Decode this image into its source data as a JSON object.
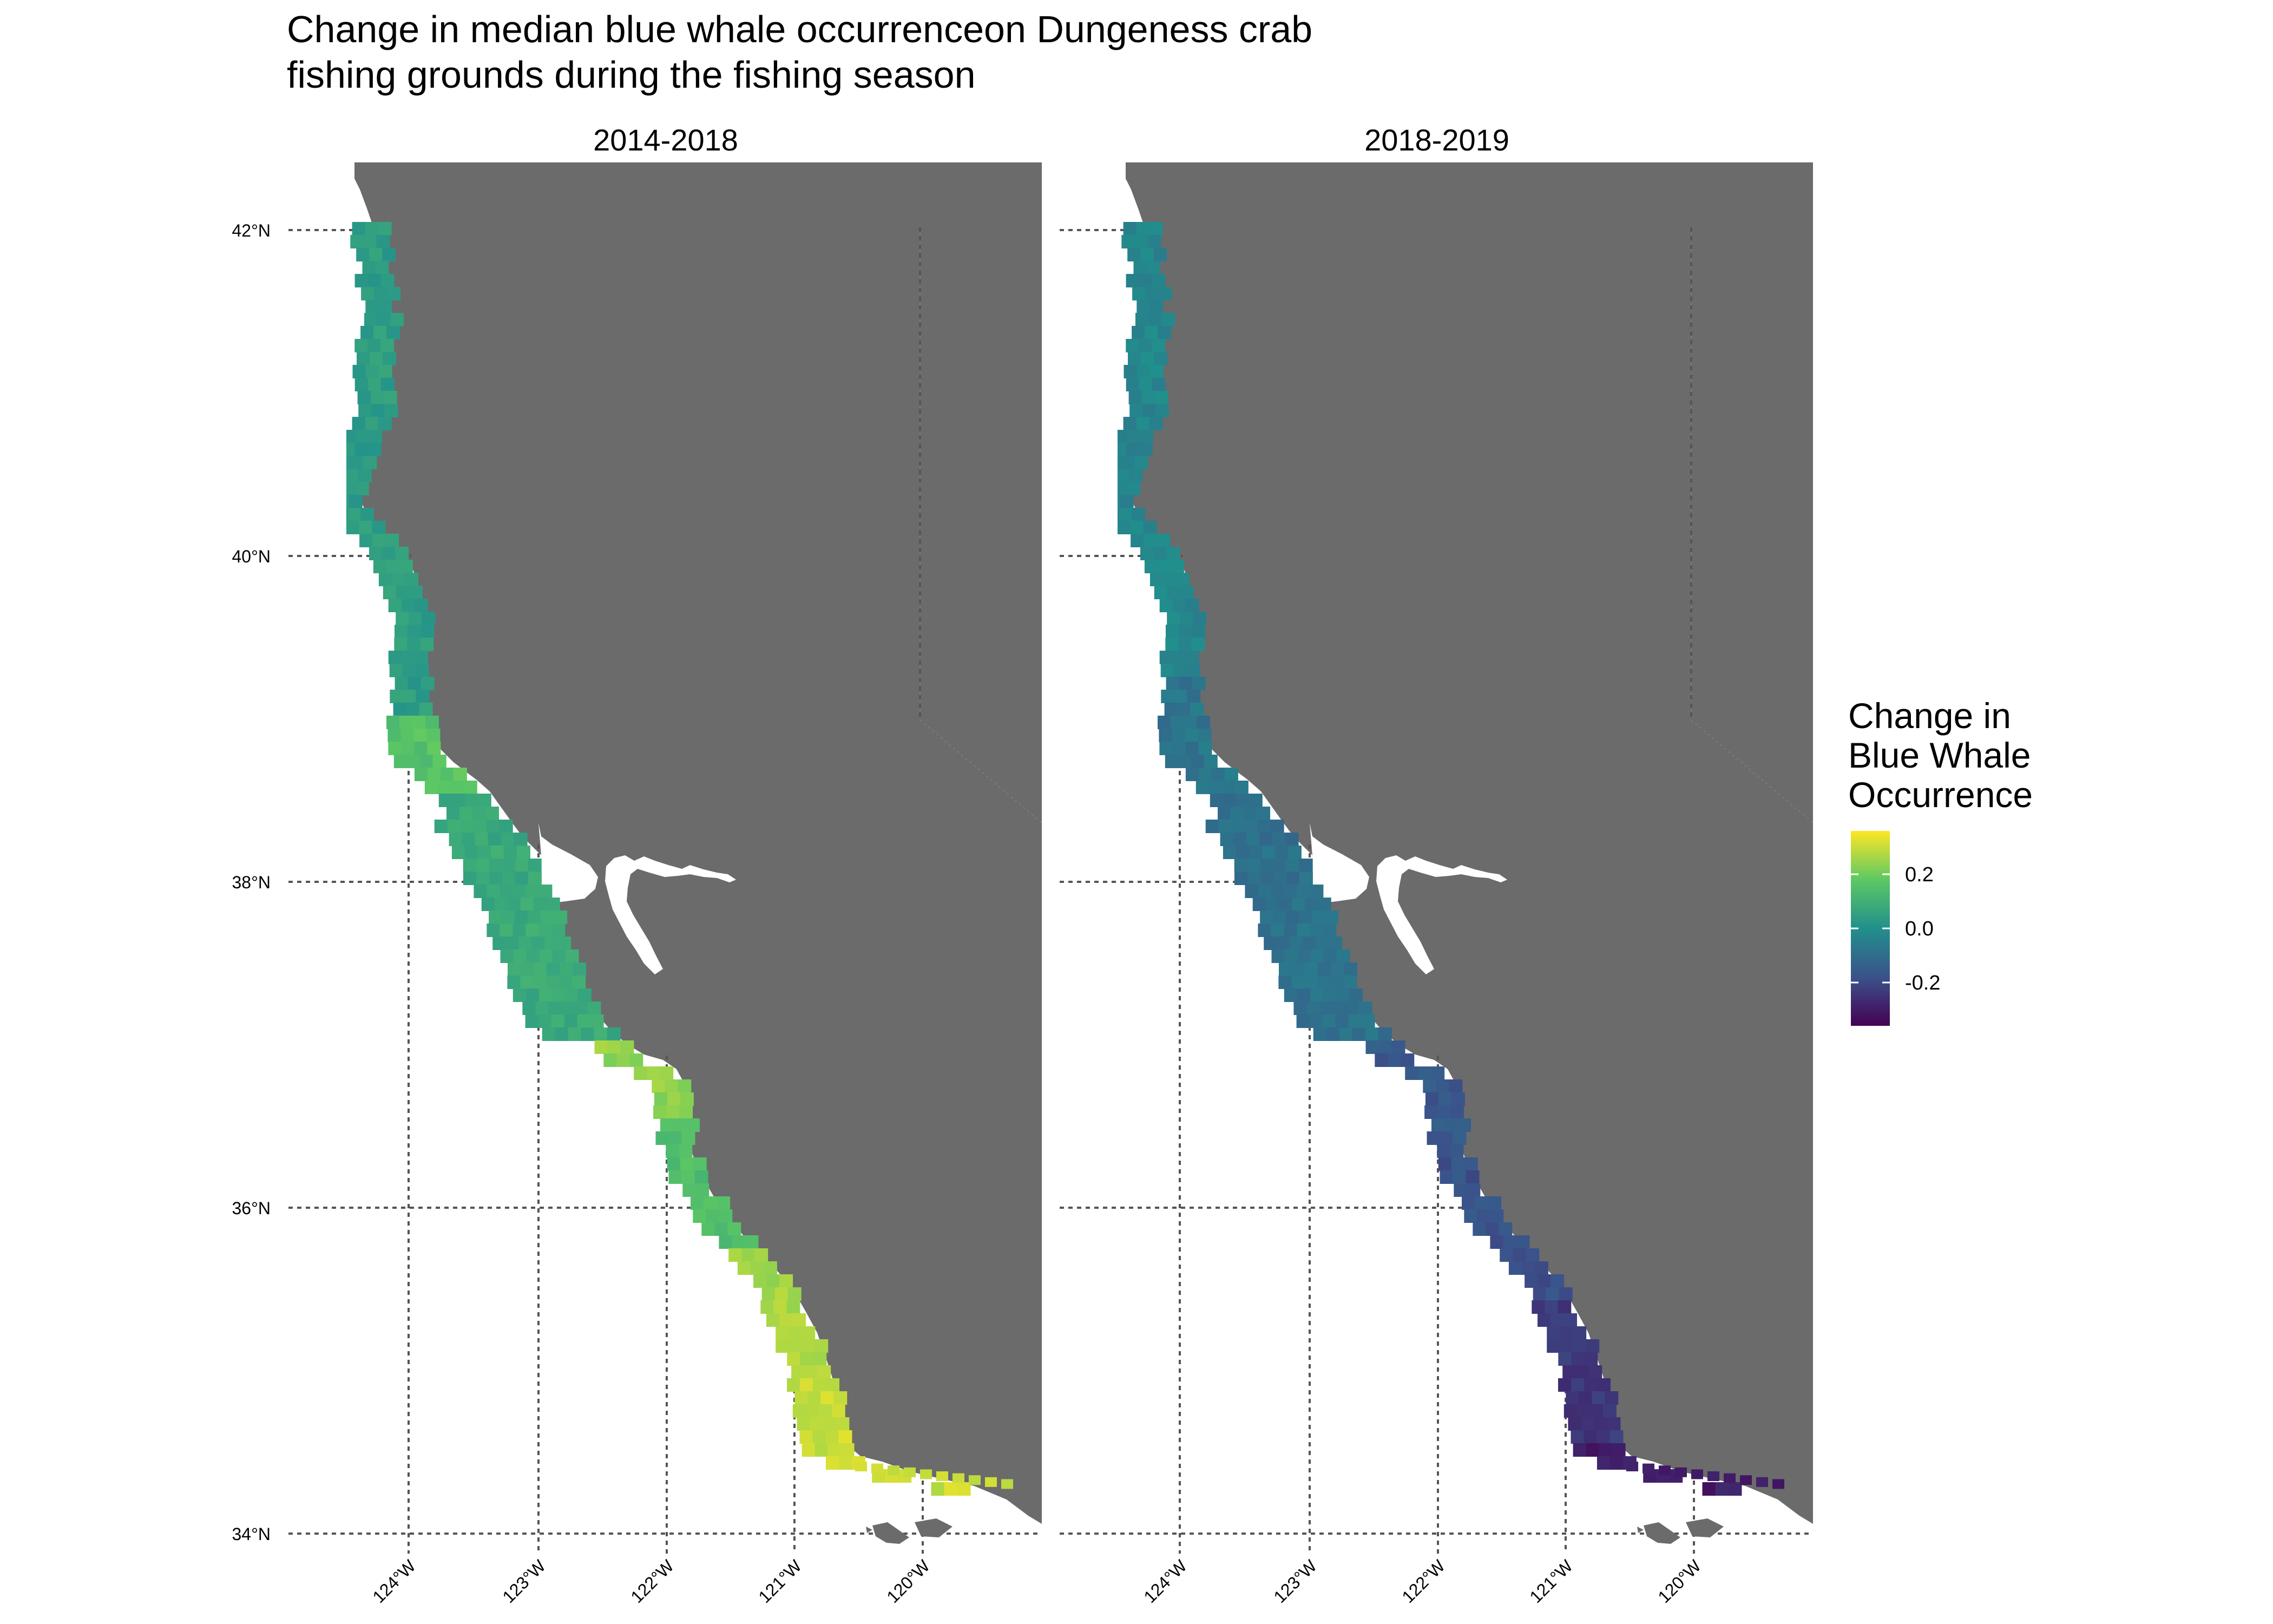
{
  "title": {
    "line1": "Change in median blue whale occurrenceon Dungeness crab",
    "line2": "fishing grounds during the fishing season"
  },
  "panels": [
    {
      "label": "2014-2018"
    },
    {
      "label": "2018-2019"
    }
  ],
  "axes": {
    "lat_labels": [
      "42°N",
      "40°N",
      "38°N",
      "36°N",
      "34°N"
    ],
    "lon_labels": [
      "124°W",
      "123°W",
      "122°W",
      "121°W",
      "120°W"
    ]
  },
  "legend": {
    "title_lines": [
      "Change in",
      "Blue Whale",
      "Occurrence"
    ],
    "ticks": [
      "0.2",
      "0.0",
      "-0.2"
    ],
    "tick_values": [
      0.2,
      0.0,
      -0.2
    ],
    "range": [
      -0.36,
      0.36
    ],
    "palette": "viridis",
    "colors": [
      "#440154",
      "#3b528b",
      "#21908c",
      "#5dc863",
      "#fde725"
    ]
  }
}
